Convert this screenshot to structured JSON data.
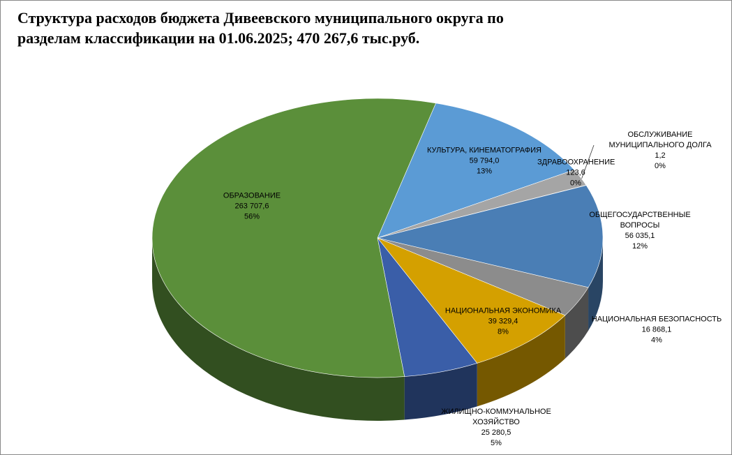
{
  "chart_data": {
    "type": "pie3d",
    "title": "Структура расходов бюджета Дивеевского муниципального округа по разделам классификации на 01.06.2025; 470 267,6 тыс.руб.",
    "categories": [
      "КУЛЬТУРА, КИНЕМАТОГРАФИЯ",
      null,
      "ЗДРАВООХРАНЕНИЕ",
      "ОБСЛУЖИВАНИЕ МУНИЦИПАЛЬНОГО ДОЛГА",
      "ОБЩЕГОСУДАРСТВЕННЫЕ ВОПРОСЫ",
      "НАЦИОНАЛЬНАЯ БЕЗОПАСНОСТЬ",
      "НАЦИОНАЛЬНАЯ ЭКОНОМИКА",
      "ЖИЛИЩНО-КОММУНАЛЬНОЕ ХОЗЯЙСТВО",
      "ОБРАЗОВАНИЕ"
    ],
    "values": [
      59794.0,
      9128.1,
      123.6,
      1.2,
      56035.1,
      16868.1,
      39329.4,
      25280.5,
      263707.6
    ],
    "value_labels": [
      "59 794,0",
      null,
      "123,6",
      "1,2",
      "56 035,1",
      "16 868,1",
      "39 329,4",
      "25 280,5",
      "263 707,6"
    ],
    "percent_labels": [
      "13%",
      null,
      "0%",
      "0%",
      "12%",
      "4%",
      "8%",
      "5%",
      "56%"
    ],
    "colors": [
      "#5b9bd5",
      "#a5a5a5",
      "#ffc000",
      "#4472c4",
      "#4a7eb5",
      "#8c8c8c",
      "#d4a000",
      "#3a5ea8",
      "#5b8f3a"
    ]
  }
}
